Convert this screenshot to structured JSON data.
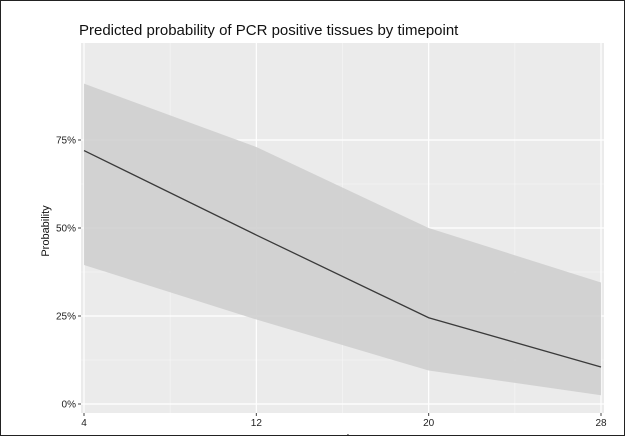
{
  "chart_data": {
    "type": "line",
    "title": "Predicted probability of PCR positive tissues by timepoint",
    "xlabel": "wpi",
    "ylabel": "Probability",
    "x": [
      4,
      12,
      20,
      28
    ],
    "x_ticks": [
      "4",
      "12",
      "20",
      "28"
    ],
    "y_ticks": [
      "0%",
      "25%",
      "50%",
      "75%"
    ],
    "xlim": [
      4,
      28
    ],
    "ylim": [
      0,
      1
    ],
    "grid": true,
    "series": [
      {
        "values": [
          0.72,
          0.48,
          0.245,
          0.105
        ],
        "lower": [
          0.395,
          0.24,
          0.095,
          0.025
        ],
        "upper": [
          0.91,
          0.73,
          0.5,
          0.345
        ],
        "line_color": "#3a3a3a",
        "band_color": "#cfcfcf"
      }
    ],
    "colors": {
      "panel_background": "#ebebeb",
      "grid_major": "#ffffff",
      "grid_minor": "#f4f4f4"
    }
  }
}
